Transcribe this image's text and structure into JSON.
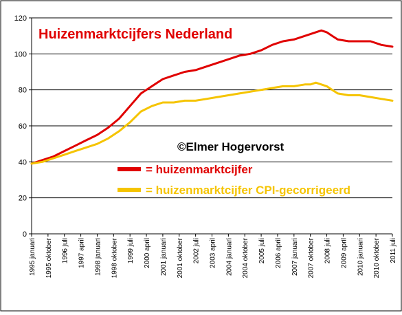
{
  "chart_data": {
    "type": "line",
    "title": "Huizenmarktcijfers Nederland",
    "annotation": "©Elmer Hogervorst",
    "xlabel": "",
    "ylabel": "",
    "ylim": [
      0,
      120
    ],
    "yticks": [
      0,
      20,
      40,
      60,
      80,
      100,
      120
    ],
    "grid": "horizontal",
    "legend_position": "center-right",
    "x": [
      1995.0,
      1995.5,
      1996.0,
      1996.5,
      1997.0,
      1997.5,
      1998.0,
      1998.5,
      1999.0,
      1999.5,
      2000.0,
      2000.5,
      2001.0,
      2001.5,
      2002.0,
      2002.5,
      2003.0,
      2003.5,
      2004.0,
      2004.5,
      2005.0,
      2005.5,
      2006.0,
      2006.5,
      2007.0,
      2007.5,
      2007.75,
      2008.0,
      2008.25,
      2008.5,
      2008.75,
      2009.0,
      2009.5,
      2010.0,
      2010.5,
      2011.0,
      2011.5
    ],
    "x_tick_labels": [
      "1995 januari",
      "1995 oktober",
      "1996 juli",
      "1997 april",
      "1998 januari",
      "1998 oktober",
      "1999 juli",
      "2000 april",
      "2001 januari",
      "2001 oktober",
      "2002 juli",
      "2003 april",
      "2004 januari",
      "2004 oktober",
      "2005 juli",
      "2006 april",
      "2007 januari",
      "2007 oktober",
      "2008 juli",
      "2009 april",
      "2010 januari",
      "2010 oktober",
      "2011 juli"
    ],
    "x_tick_values": [
      1995.0,
      1995.75,
      1996.5,
      1997.25,
      1998.0,
      1998.75,
      1999.5,
      2000.25,
      2001.0,
      2001.75,
      2002.5,
      2003.25,
      2004.0,
      2004.75,
      2005.5,
      2006.25,
      2007.0,
      2007.75,
      2008.5,
      2009.25,
      2010.0,
      2010.75,
      2011.5
    ],
    "xlim": [
      1995.0,
      2011.5
    ],
    "series": [
      {
        "name": "= huizenmarktcijfer",
        "color": "#e00000",
        "values": [
          39,
          41,
          43,
          46,
          49,
          52,
          55,
          59,
          64,
          71,
          78,
          82,
          86,
          88,
          90,
          91,
          93,
          95,
          97,
          99,
          100,
          102,
          105,
          107,
          108,
          110,
          111,
          112,
          113,
          112,
          110,
          108,
          107,
          107,
          107,
          105,
          104
        ]
      },
      {
        "name": "= huizenmarktcijfer CPI-gecorrigeerd",
        "color": "#f5c400",
        "values": [
          39,
          40,
          42,
          44,
          46,
          48,
          50,
          53,
          57,
          62,
          68,
          71,
          73,
          73,
          74,
          74,
          75,
          76,
          77,
          78,
          79,
          80,
          81,
          82,
          82,
          83,
          83,
          84,
          83,
          82,
          80,
          78,
          77,
          77,
          76,
          75,
          74
        ]
      }
    ]
  }
}
